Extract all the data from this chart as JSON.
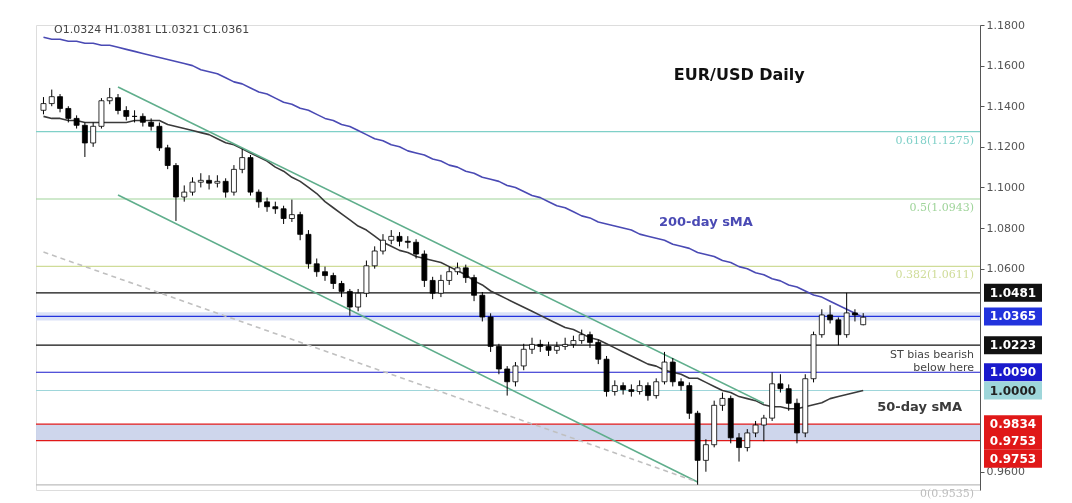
{
  "chart_data": {
    "type": "candlestick",
    "title": "EUR/USD Daily",
    "categories": [
      null,
      null,
      null,
      null,
      null,
      null,
      null,
      null,
      null,
      null,
      null,
      null,
      null,
      null,
      null,
      null,
      null,
      null,
      null,
      null,
      null,
      null,
      null,
      null,
      null,
      null,
      null,
      null,
      null,
      null,
      null,
      null,
      null,
      null,
      null,
      null,
      null,
      null,
      null,
      null,
      null,
      null,
      null,
      null,
      null,
      null,
      null,
      null,
      null,
      null,
      null,
      null,
      null,
      null,
      null,
      null,
      null,
      null,
      null,
      null,
      null,
      null,
      null,
      null,
      null,
      null,
      null,
      null,
      null,
      null,
      null,
      null,
      null,
      null,
      null,
      null,
      null,
      null,
      null,
      null,
      null,
      null,
      null,
      null,
      null,
      null,
      null,
      null,
      null,
      null,
      null,
      null,
      null,
      null,
      null,
      null,
      null,
      null,
      null,
      null
    ],
    "ohlc": [
      [
        1.138,
        1.1445,
        1.136,
        1.1413
      ],
      [
        1.1413,
        1.1482,
        1.14,
        1.1447
      ],
      [
        1.1447,
        1.146,
        1.137,
        1.1389
      ],
      [
        1.1389,
        1.14,
        1.132,
        1.134
      ],
      [
        1.134,
        1.1355,
        1.129,
        1.1306
      ],
      [
        1.1306,
        1.132,
        1.115,
        1.1219
      ],
      [
        1.1219,
        1.132,
        1.12,
        1.1301
      ],
      [
        1.1301,
        1.144,
        1.129,
        1.1427
      ],
      [
        1.1427,
        1.149,
        1.141,
        1.1442
      ],
      [
        1.1442,
        1.146,
        1.136,
        1.1379
      ],
      [
        1.1379,
        1.14,
        1.133,
        1.135
      ],
      [
        1.135,
        1.138,
        1.132,
        1.135
      ],
      [
        1.135,
        1.1365,
        1.13,
        1.1321
      ],
      [
        1.1321,
        1.134,
        1.128,
        1.1301
      ],
      [
        1.1301,
        1.132,
        1.118,
        1.1195
      ],
      [
        1.1195,
        1.121,
        1.109,
        1.1108
      ],
      [
        1.1108,
        1.112,
        1.0835,
        1.0953
      ],
      [
        1.0953,
        1.101,
        1.093,
        1.0977
      ],
      [
        1.0977,
        1.105,
        1.096,
        1.1026
      ],
      [
        1.1026,
        1.107,
        1.1,
        1.1035
      ],
      [
        1.1035,
        1.106,
        1.099,
        1.1021
      ],
      [
        1.1021,
        1.106,
        1.1,
        1.103
      ],
      [
        1.103,
        1.1045,
        1.095,
        1.0977
      ],
      [
        1.0977,
        1.111,
        1.096,
        1.1089
      ],
      [
        1.1089,
        1.119,
        1.107,
        1.1147
      ],
      [
        1.1147,
        1.116,
        1.096,
        1.0977
      ],
      [
        1.0977,
        1.099,
        1.09,
        1.0929
      ],
      [
        1.0929,
        1.095,
        1.088,
        1.0905
      ],
      [
        1.0905,
        1.093,
        1.087,
        1.0895
      ],
      [
        1.0895,
        1.091,
        1.082,
        1.0847
      ],
      [
        1.0847,
        1.094,
        1.083,
        1.0866
      ],
      [
        1.0866,
        1.088,
        1.074,
        1.0769
      ],
      [
        1.0769,
        1.079,
        1.06,
        1.0624
      ],
      [
        1.0624,
        1.065,
        1.056,
        1.0585
      ],
      [
        1.0585,
        1.061,
        1.054,
        1.0566
      ],
      [
        1.0566,
        1.058,
        1.05,
        1.0527
      ],
      [
        1.0527,
        1.054,
        1.046,
        1.0488
      ],
      [
        1.0488,
        1.05,
        1.0368,
        1.0411
      ],
      [
        1.0411,
        1.05,
        1.039,
        1.0479
      ],
      [
        1.0479,
        1.064,
        1.046,
        1.0614
      ],
      [
        1.0614,
        1.071,
        1.06,
        1.0687
      ],
      [
        1.0687,
        1.077,
        1.067,
        1.074
      ],
      [
        1.074,
        1.079,
        1.072,
        1.0759
      ],
      [
        1.0759,
        1.078,
        1.071,
        1.0735
      ],
      [
        1.0735,
        1.076,
        1.07,
        1.073
      ],
      [
        1.073,
        1.0745,
        1.065,
        1.0672
      ],
      [
        1.0672,
        1.069,
        1.051,
        1.0542
      ],
      [
        1.0542,
        1.056,
        1.045,
        1.0479
      ],
      [
        1.0479,
        1.057,
        1.046,
        1.0542
      ],
      [
        1.0542,
        1.061,
        1.052,
        1.0585
      ],
      [
        1.0585,
        1.063,
        1.057,
        1.0604
      ],
      [
        1.0604,
        1.062,
        1.053,
        1.0556
      ],
      [
        1.0556,
        1.057,
        1.044,
        1.0469
      ],
      [
        1.0469,
        1.0485,
        1.034,
        1.0362
      ],
      [
        1.0362,
        1.038,
        1.019,
        1.0217
      ],
      [
        1.0217,
        1.023,
        1.008,
        1.0106
      ],
      [
        1.0106,
        1.012,
        0.9975,
        1.0043
      ],
      [
        1.0043,
        1.014,
        1.002,
        1.0121
      ],
      [
        1.0121,
        1.023,
        1.01,
        1.0203
      ],
      [
        1.0203,
        1.026,
        1.018,
        1.0227
      ],
      [
        1.0227,
        1.025,
        1.019,
        1.0217
      ],
      [
        1.0217,
        1.024,
        1.017,
        1.0198
      ],
      [
        1.0198,
        1.024,
        1.018,
        1.0217
      ],
      [
        1.0217,
        1.026,
        1.02,
        1.0227
      ],
      [
        1.0227,
        1.027,
        1.021,
        1.0246
      ],
      [
        1.0246,
        1.03,
        1.023,
        1.0275
      ],
      [
        1.0275,
        1.029,
        1.021,
        1.0237
      ],
      [
        1.0237,
        1.025,
        1.013,
        1.0154
      ],
      [
        1.0154,
        1.017,
        0.997,
        0.9995
      ],
      [
        0.9995,
        1.005,
        0.9975,
        1.0024
      ],
      [
        1.0024,
        1.004,
        0.998,
        1.0004
      ],
      [
        1.0004,
        1.003,
        0.997,
        0.9995
      ],
      [
        0.9995,
        1.005,
        0.998,
        1.0024
      ],
      [
        1.0024,
        1.004,
        0.995,
        0.9975
      ],
      [
        0.9975,
        1.006,
        0.996,
        1.0043
      ],
      [
        1.0043,
        1.019,
        1.003,
        1.014
      ],
      [
        1.014,
        1.016,
        1.002,
        1.0043
      ],
      [
        1.0043,
        1.006,
        1.0,
        1.0024
      ],
      [
        1.0024,
        1.004,
        0.986,
        0.9888
      ],
      [
        0.9888,
        0.99,
        0.9536,
        0.9656
      ],
      [
        0.9656,
        0.976,
        0.96,
        0.9733
      ],
      [
        0.9733,
        0.995,
        0.972,
        0.9927
      ],
      [
        0.9927,
        0.999,
        0.99,
        0.9961
      ],
      [
        0.9961,
        0.9975,
        0.974,
        0.9767
      ],
      [
        0.9767,
        0.979,
        0.965,
        0.9719
      ],
      [
        0.9719,
        0.981,
        0.97,
        0.9791
      ],
      [
        0.9791,
        0.985,
        0.977,
        0.983
      ],
      [
        0.983,
        0.988,
        0.975,
        0.9864
      ],
      [
        0.9864,
        1.009,
        0.985,
        1.0033
      ],
      [
        1.0033,
        1.008,
        0.999,
        1.0009
      ],
      [
        1.0009,
        1.003,
        0.99,
        0.9937
      ],
      [
        0.9937,
        0.996,
        0.974,
        0.9791
      ],
      [
        0.9791,
        1.008,
        0.977,
        1.0058
      ],
      [
        1.0058,
        1.029,
        1.004,
        1.0275
      ],
      [
        1.0275,
        1.04,
        1.026,
        1.0372
      ],
      [
        1.0372,
        1.042,
        1.033,
        1.0348
      ],
      [
        1.0348,
        1.036,
        1.0223,
        1.0275
      ],
      [
        1.0275,
        1.0481,
        1.026,
        1.0382
      ],
      [
        1.0382,
        1.04,
        1.034,
        1.0372
      ],
      [
        1.0324,
        1.0381,
        1.0321,
        1.0361
      ]
    ],
    "series": [
      {
        "type": "line",
        "name": "200-day sMA",
        "color": "#4a4ab4",
        "values": [
          1.174,
          1.173,
          1.173,
          1.172,
          1.172,
          1.171,
          1.171,
          1.17,
          1.17,
          1.169,
          1.168,
          1.167,
          1.166,
          1.165,
          1.164,
          1.163,
          1.162,
          1.161,
          1.16,
          1.158,
          1.157,
          1.156,
          1.154,
          1.152,
          1.151,
          1.149,
          1.147,
          1.146,
          1.144,
          1.142,
          1.141,
          1.139,
          1.138,
          1.136,
          1.134,
          1.133,
          1.131,
          1.13,
          1.128,
          1.126,
          1.124,
          1.123,
          1.121,
          1.12,
          1.118,
          1.117,
          1.116,
          1.114,
          1.113,
          1.111,
          1.11,
          1.108,
          1.107,
          1.105,
          1.104,
          1.103,
          1.101,
          1.1,
          1.098,
          1.096,
          1.095,
          1.093,
          1.091,
          1.09,
          1.088,
          1.086,
          1.085,
          1.083,
          1.082,
          1.081,
          1.08,
          1.079,
          1.077,
          1.076,
          1.075,
          1.074,
          1.072,
          1.071,
          1.07,
          1.068,
          1.067,
          1.066,
          1.064,
          1.063,
          1.061,
          1.06,
          1.058,
          1.057,
          1.055,
          1.054,
          1.052,
          1.051,
          1.049,
          1.047,
          1.046,
          1.044,
          1.042,
          1.04,
          1.038,
          1.036
        ]
      },
      {
        "type": "line",
        "name": "50-day sMA",
        "color": "#3a3a3a",
        "values": [
          1.135,
          1.134,
          1.134,
          1.133,
          1.133,
          1.132,
          1.132,
          1.132,
          1.132,
          1.132,
          1.132,
          1.133,
          1.133,
          1.133,
          1.133,
          1.131,
          1.13,
          1.129,
          1.128,
          1.127,
          1.126,
          1.124,
          1.122,
          1.121,
          1.119,
          1.117,
          1.115,
          1.113,
          1.11,
          1.108,
          1.105,
          1.103,
          1.1,
          1.097,
          1.093,
          1.09,
          1.087,
          1.084,
          1.081,
          1.079,
          1.076,
          1.073,
          1.071,
          1.069,
          1.068,
          1.066,
          1.065,
          1.064,
          1.063,
          1.061,
          1.059,
          1.057,
          1.054,
          1.052,
          1.049,
          1.047,
          1.045,
          1.043,
          1.041,
          1.039,
          1.037,
          1.035,
          1.033,
          1.031,
          1.03,
          1.028,
          1.026,
          1.025,
          1.023,
          1.021,
          1.019,
          1.017,
          1.015,
          1.013,
          1.012,
          1.01,
          1.009,
          1.008,
          1.006,
          1.006,
          1.004,
          1.002,
          1.0,
          0.999,
          0.997,
          0.996,
          0.995,
          0.993,
          0.992,
          0.992,
          0.991,
          0.991,
          0.992,
          0.993,
          0.994,
          0.996,
          0.997,
          0.998,
          0.999,
          1.0
        ]
      },
      {
        "type": "line",
        "color": "#5fae8c",
        "values": [
          null,
          null,
          null,
          null,
          null,
          null,
          null,
          null,
          null,
          1.1495,
          null,
          null,
          null,
          null,
          null,
          null,
          null,
          null,
          null,
          null,
          null,
          null,
          null,
          null,
          null,
          null,
          null,
          null,
          null,
          null,
          null,
          null,
          null,
          null,
          null,
          null,
          null,
          null,
          null,
          null,
          null,
          null,
          null,
          null,
          null,
          null,
          null,
          null,
          null,
          null,
          null,
          null,
          null,
          null,
          null,
          null,
          null,
          null,
          null,
          null,
          null,
          null,
          null,
          null,
          null,
          null,
          null,
          null,
          null,
          null,
          null,
          null,
          null,
          null,
          null,
          null,
          null,
          null,
          null,
          null,
          null,
          null,
          null,
          null,
          null,
          null,
          null,
          0.9937,
          null,
          null,
          null,
          null,
          null,
          null,
          null,
          null,
          null,
          null,
          null,
          null
        ]
      },
      {
        "type": "line",
        "color": "#5fae8c",
        "values": [
          null,
          null,
          null,
          null,
          null,
          null,
          null,
          null,
          null,
          1.0963,
          null,
          null,
          null,
          null,
          null,
          null,
          null,
          null,
          null,
          null,
          null,
          null,
          null,
          null,
          null,
          null,
          null,
          null,
          null,
          null,
          null,
          null,
          null,
          null,
          null,
          null,
          null,
          null,
          null,
          null,
          null,
          null,
          null,
          null,
          null,
          null,
          null,
          null,
          null,
          null,
          null,
          null,
          null,
          null,
          null,
          null,
          null,
          null,
          null,
          null,
          null,
          null,
          null,
          null,
          null,
          null,
          null,
          null,
          null,
          null,
          null,
          null,
          null,
          null,
          null,
          null,
          null,
          null,
          null,
          0.9549,
          null,
          null,
          null,
          null,
          null,
          null,
          null,
          null,
          null,
          null,
          null,
          null,
          null,
          null,
          null,
          null,
          null,
          null,
          null,
          null
        ]
      },
      {
        "type": "line",
        "color": "#c0c0c0",
        "line_style": "dashed",
        "values": [
          1.0682,
          null,
          null,
          null,
          null,
          null,
          null,
          null,
          null,
          null,
          null,
          null,
          null,
          null,
          null,
          null,
          null,
          null,
          null,
          null,
          null,
          null,
          null,
          null,
          null,
          null,
          null,
          null,
          null,
          null,
          null,
          null,
          null,
          null,
          null,
          null,
          null,
          null,
          null,
          null,
          null,
          null,
          null,
          null,
          null,
          null,
          null,
          null,
          null,
          null,
          null,
          null,
          null,
          null,
          null,
          null,
          null,
          null,
          null,
          null,
          null,
          null,
          null,
          null,
          null,
          null,
          null,
          null,
          null,
          null,
          null,
          null,
          null,
          null,
          null,
          null,
          null,
          null,
          null,
          0.9549,
          null,
          null,
          null,
          null,
          null,
          null,
          null,
          null,
          null,
          null,
          null,
          null,
          null,
          null,
          null,
          null,
          null,
          null,
          null,
          null
        ]
      }
    ],
    "ylim": [
      0.951,
      1.18
    ],
    "yticks": [
      {
        "value": 1.18,
        "label": "1.1800"
      },
      {
        "value": 1.16,
        "label": "1.1600"
      },
      {
        "value": 1.14,
        "label": "1.1400"
      },
      {
        "value": 1.12,
        "label": "1.1200"
      },
      {
        "value": 1.1,
        "label": "1.1000"
      },
      {
        "value": 1.08,
        "label": "1.0800"
      },
      {
        "value": 1.06,
        "label": "1.0600"
      },
      {
        "value": 0.96,
        "label": "0.9600"
      }
    ],
    "ref_lines": [
      {
        "axis": "y",
        "value": 1.1275,
        "label": "0.618(1.1275)",
        "color": "#7fd0c8"
      },
      {
        "axis": "y",
        "value": 1.0943,
        "label": "0.5(1.0943)",
        "color": "#9fd49a"
      },
      {
        "axis": "y",
        "value": 1.0611,
        "label": "0.382(1.0611)",
        "color": "#cfdc98"
      },
      {
        "axis": "y",
        "value": 0.9535,
        "label": "0(0.9535)",
        "color": "#bdbdbd"
      },
      {
        "axis": "y",
        "value": 1.0481,
        "label": "1.0481",
        "color": "#111111"
      },
      {
        "axis": "y",
        "value": 1.0365,
        "label": "1.0365",
        "color": "#2233dd"
      },
      {
        "axis": "y",
        "value": 1.0223,
        "label": "1.0223",
        "color": "#111111"
      },
      {
        "axis": "y",
        "value": 1.009,
        "label": "1.0090",
        "color": "#1a1acc"
      },
      {
        "axis": "y",
        "value": 1.0,
        "label": "1.0000",
        "color": "#9ed6da"
      },
      {
        "axis": "y",
        "value": 0.9834,
        "label": "0.9834",
        "color": "#e01818"
      },
      {
        "axis": "y",
        "value": 0.9753,
        "label": "0.9753",
        "color": "#e01818"
      }
    ],
    "bands": [
      {
        "axis": "y",
        "from": 1.0345,
        "to": 1.0385,
        "color": "#d6def6"
      },
      {
        "axis": "y",
        "from": 0.9753,
        "to": 0.9834,
        "color": "#c9d1ea"
      }
    ],
    "annotations": [
      "O1.0324  H1.0381  L1.0321  C1.0361",
      {
        "text": "ST bias bearish\nbelow here",
        "y": 1.0223
      },
      "0.9753"
    ]
  }
}
